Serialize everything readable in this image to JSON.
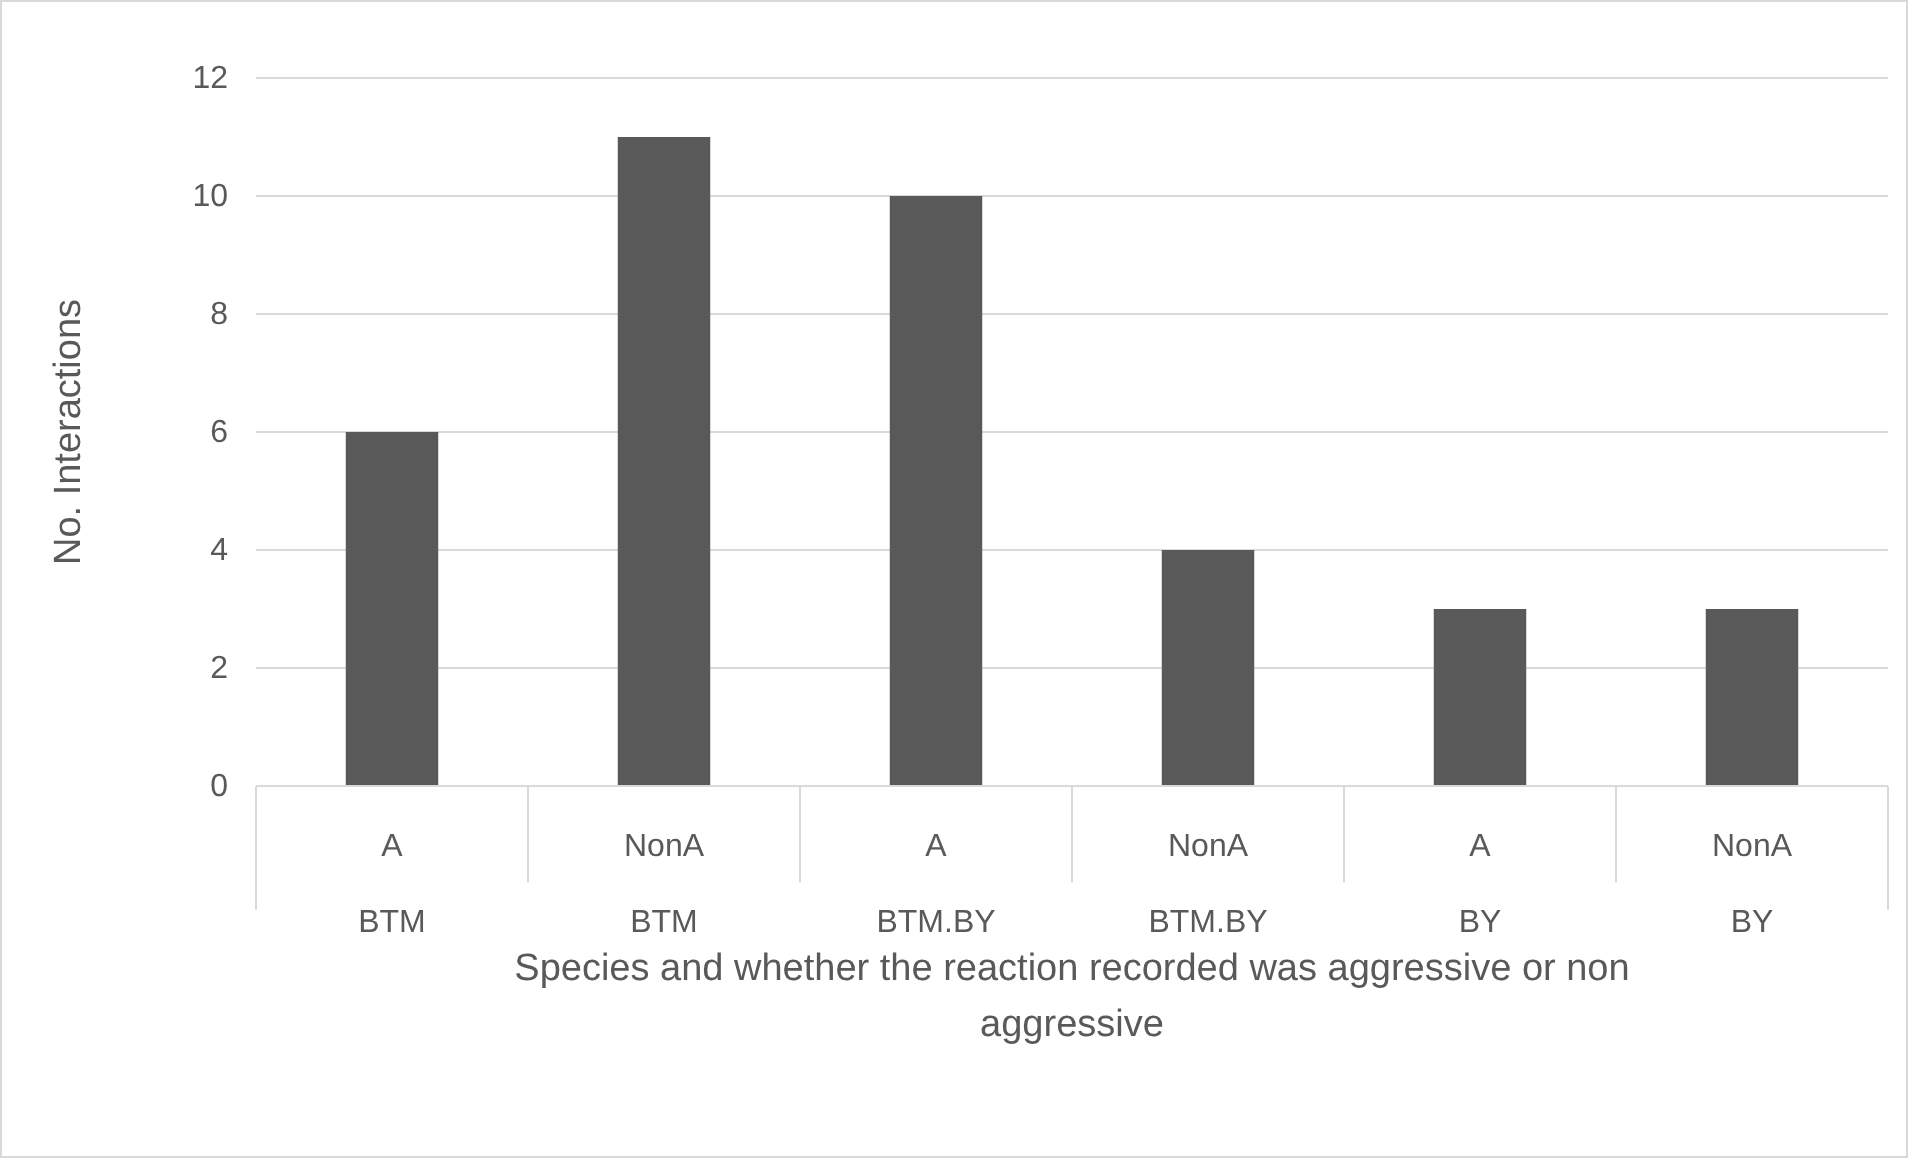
{
  "chart_data": {
    "type": "bar",
    "xlabel": "Species and whether the reaction recorded was aggressive or non aggressive",
    "ylabel": "No. Interactions",
    "categories": [
      "A\nBTM",
      "NonA\nBTM",
      "A\nBTM.BY",
      "NonA\nBTM.BY",
      "A\nBY",
      "NonA\nBY"
    ],
    "values": [
      6,
      11,
      10,
      4,
      3,
      3
    ],
    "color": "#595959",
    "ylim": [
      0,
      12
    ],
    "yticks": [
      0,
      2,
      4,
      6,
      8,
      10,
      12
    ],
    "grid": "y"
  }
}
